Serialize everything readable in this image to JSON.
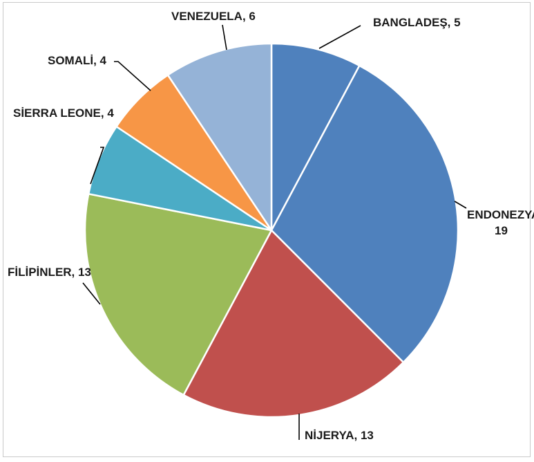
{
  "chart_data": {
    "type": "pie",
    "title": "",
    "start_angle_deg": 0,
    "direction": "clockwise",
    "slices": [
      {
        "label": "BANGLADEŞ",
        "value": 5,
        "display": "BANGLADEŞ, 5",
        "color": "#4f81bd"
      },
      {
        "label": "ENDONEZYA",
        "value": 19,
        "display_lines": [
          "ENDONEZYA",
          "19"
        ],
        "color": "#4f81bd"
      },
      {
        "label": "NİJERYA",
        "value": 13,
        "display": "NİJERYA, 13",
        "color": "#c0504d"
      },
      {
        "label": "FİLİPİNLER",
        "value": 13,
        "display": "FİLİPİNLER, 13",
        "color": "#9bbb59"
      },
      {
        "label": "SİERRA LEONE",
        "value": 4,
        "display": "SİERRA LEONE, 4",
        "color": "#4bacc6"
      },
      {
        "label": "SOMALİ",
        "value": 4,
        "display": "SOMALİ, 4",
        "color": "#f79646"
      },
      {
        "label": "VENEZUELA",
        "value": 6,
        "display": "VENEZUELA, 6",
        "color": "#95b3d7"
      }
    ]
  }
}
